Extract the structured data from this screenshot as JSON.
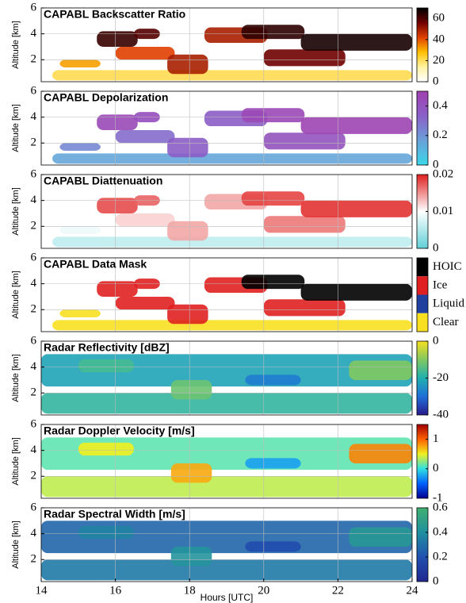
{
  "chart_data": [
    {
      "type": "heatmap",
      "title": "CAPABL Backscatter Ratio",
      "ylabel": "Altitude [km]",
      "ylim": [
        0.3,
        6
      ],
      "yticks": [
        2,
        4,
        6
      ],
      "clim": [
        0,
        70
      ],
      "cticks": [
        0,
        20,
        40,
        60
      ],
      "colormap": [
        "#ffffff",
        "#fff3a0",
        "#ffc000",
        "#e04000",
        "#700000",
        "#000000"
      ],
      "grid": true
    },
    {
      "type": "heatmap",
      "title": "CAPABL Depolarization",
      "ylabel": "Altitude [km]",
      "ylim": [
        0.3,
        6
      ],
      "yticks": [
        2,
        4,
        6
      ],
      "clim": [
        0,
        0.5
      ],
      "cticks": [
        0,
        0.2,
        0.4
      ],
      "colormap": [
        "#3ad8e8",
        "#6aa0d8",
        "#8a60c8",
        "#a040b0"
      ],
      "grid": true
    },
    {
      "type": "heatmap",
      "title": "CAPABL Diattenuation",
      "ylabel": "Altitude [km]",
      "ylim": [
        0.3,
        6
      ],
      "yticks": [
        2,
        4,
        6
      ],
      "clim": [
        0,
        0.02
      ],
      "cticks": [
        0,
        0.01,
        0.02
      ],
      "colormap": [
        "#60d0d8",
        "#ffffff",
        "#e02020"
      ],
      "grid": true
    },
    {
      "type": "categorical_map",
      "title": "CAPABL Data Mask",
      "ylabel": "Altitude [km]",
      "ylim": [
        0.3,
        6
      ],
      "yticks": [
        2,
        4,
        6
      ],
      "classes": [
        {
          "name": "HOIC",
          "color": "#000000"
        },
        {
          "name": "Ice",
          "color": "#e02020"
        },
        {
          "name": "Liquid",
          "color": "#2040a0"
        },
        {
          "name": "Clear",
          "color": "#f8e020"
        }
      ],
      "grid": true
    },
    {
      "type": "heatmap",
      "title": "Radar Reflectivity [dBZ]",
      "ylabel": "Altitude [km]",
      "ylim": [
        0.3,
        6
      ],
      "yticks": [
        2,
        4,
        6
      ],
      "clim": [
        -40,
        0
      ],
      "cticks": [
        -40,
        -20,
        0
      ],
      "colormap": [
        "#2a1a8c",
        "#1f6fd8",
        "#20b0b0",
        "#80c860",
        "#f8e020"
      ],
      "grid": true
    },
    {
      "type": "heatmap",
      "title": "Radar Doppler Velocity [m/s]",
      "ylabel": "Altitude [km]",
      "ylim": [
        0.3,
        6
      ],
      "yticks": [
        2,
        4,
        6
      ],
      "clim": [
        -1,
        1.5
      ],
      "cticks": [
        -1,
        0,
        1
      ],
      "colormap": [
        "#000090",
        "#0060ff",
        "#30e0e0",
        "#f0f020",
        "#ff6000",
        "#a00000"
      ],
      "grid": true
    },
    {
      "type": "heatmap",
      "title": "Radar Spectral Width [m/s]",
      "ylabel": "Altitude [km]",
      "ylim": [
        0.3,
        6
      ],
      "yticks": [
        2,
        4,
        6
      ],
      "clim": [
        0,
        0.6
      ],
      "cticks": [
        0,
        0.2,
        0.4,
        0.6
      ],
      "colormap": [
        "#202890",
        "#2050b0",
        "#2090a0",
        "#40b070"
      ],
      "grid": true,
      "xlim": [
        14,
        24
      ],
      "xticks": [
        14,
        16,
        18,
        20,
        22,
        24
      ],
      "xlabel": "Hours [UTC]"
    }
  ]
}
